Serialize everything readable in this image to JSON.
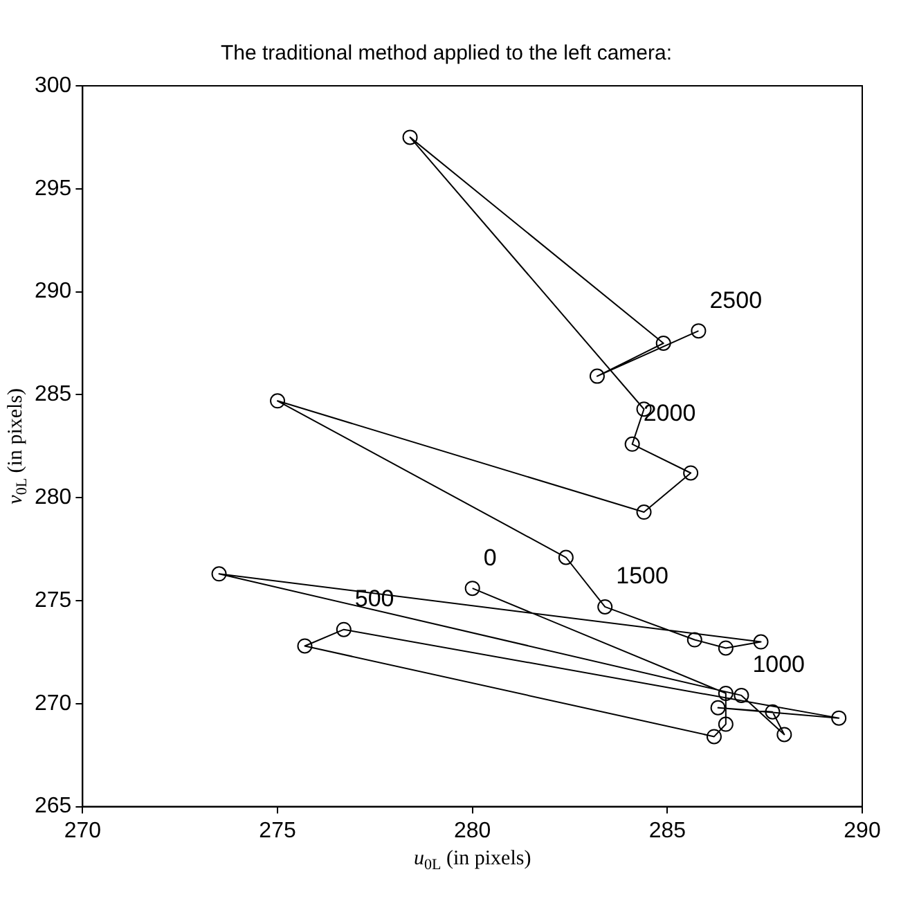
{
  "chart_data": {
    "type": "line",
    "title": "The traditional method applied to the left camera:",
    "xlabel": "u$_{0L}$ (in pixels)",
    "ylabel": "v$_{0L}$ (in pixels)",
    "x": [
      280.0,
      286.5,
      286.5,
      286.2,
      275.7,
      276.7,
      289.4,
      286.3,
      287.7,
      288.0,
      286.9,
      273.5,
      287.4,
      286.5,
      285.7,
      283.4,
      282.4,
      275.0,
      284.4,
      285.6,
      284.1,
      284.4,
      278.4,
      284.9,
      283.2,
      285.8
    ],
    "values": [
      275.6,
      270.5,
      269.0,
      268.4,
      272.8,
      273.6,
      269.3,
      269.8,
      269.6,
      268.5,
      270.4,
      276.3,
      273.0,
      272.7,
      273.1,
      274.7,
      277.1,
      284.7,
      279.3,
      281.2,
      282.6,
      284.3,
      297.5,
      287.5,
      285.9,
      288.1
    ],
    "color": "#000000",
    "marker": "circle",
    "grid": false,
    "xlim": [
      270,
      290
    ],
    "xticks": [
      270,
      275,
      280,
      285,
      290
    ],
    "ylim": [
      265,
      300
    ],
    "yticks": [
      265,
      270,
      275,
      280,
      285,
      290,
      295,
      300
    ],
    "annotations": [
      {
        "text": "0",
        "x": 280.0,
        "y": 275.6
      },
      {
        "text": "500",
        "x": 276.7,
        "y": 273.6
      },
      {
        "text": "1000",
        "x": 286.9,
        "y": 270.4
      },
      {
        "text": "1500",
        "x": 283.4,
        "y": 274.7
      },
      {
        "text": "2000",
        "x": 284.1,
        "y": 282.6
      },
      {
        "text": "2500",
        "x": 285.8,
        "y": 288.1
      }
    ]
  }
}
